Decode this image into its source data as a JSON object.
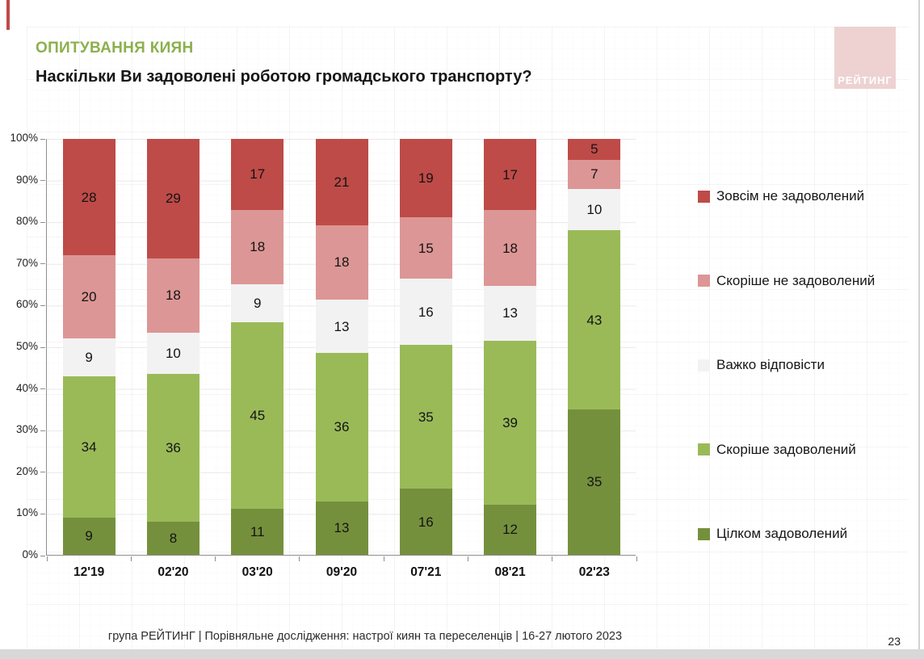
{
  "slide": {
    "title": "ОПИТУВАННЯ КИЯН",
    "subtitle": "Наскільки Ви задоволені роботою громадського транспорту?",
    "logo_text": "РЕЙТИНГ",
    "footer": "група РЕЙТИНГ | Порівняльне дослідження: настрої киян та переселенців | 16-27 лютого 2023",
    "page_number": "23",
    "accent_colors": {
      "title_green": "#8cb04e",
      "logo_pink": "#edd2d1",
      "accent_red": "#be4b48",
      "bottom_bar_gray": "#d8d8d8"
    }
  },
  "chart_data": {
    "type": "bar",
    "stacked": true,
    "units": "%",
    "categories": [
      "12'19",
      "02'20",
      "03'20",
      "09'20",
      "07'21",
      "08'21",
      "02'23"
    ],
    "series": [
      {
        "name": "Цілком задоволений",
        "color": "#75903c",
        "values": [
          9,
          8,
          11,
          13,
          16,
          12,
          35
        ]
      },
      {
        "name": "Скоріше задоволений",
        "color": "#9aba58",
        "values": [
          34,
          36,
          45,
          36,
          35,
          39,
          43
        ]
      },
      {
        "name": "Важко відповісти",
        "color": "#f2f2f2",
        "values": [
          9,
          10,
          9,
          13,
          16,
          13,
          10
        ]
      },
      {
        "name": "Скоріше не задоволений",
        "color": "#dc9695",
        "values": [
          20,
          18,
          18,
          18,
          15,
          18,
          7
        ]
      },
      {
        "name": "Зовсім не задоволений",
        "color": "#be4b48",
        "values": [
          28,
          29,
          17,
          21,
          19,
          17,
          5
        ]
      }
    ],
    "legend_order_top_to_bottom": [
      "Зовсім не задоволений",
      "Скоріше не задоволений",
      "Важко відповісти",
      "Скоріше задоволений",
      "Цілком задоволений"
    ],
    "ylim": [
      0,
      100
    ],
    "y_ticks": [
      "100%",
      "90%",
      "80%",
      "70%",
      "60%",
      "50%",
      "40%",
      "30%",
      "20%",
      "10%",
      "0%"
    ],
    "grid": true,
    "legend_position": "right",
    "value_labels": "inside"
  }
}
